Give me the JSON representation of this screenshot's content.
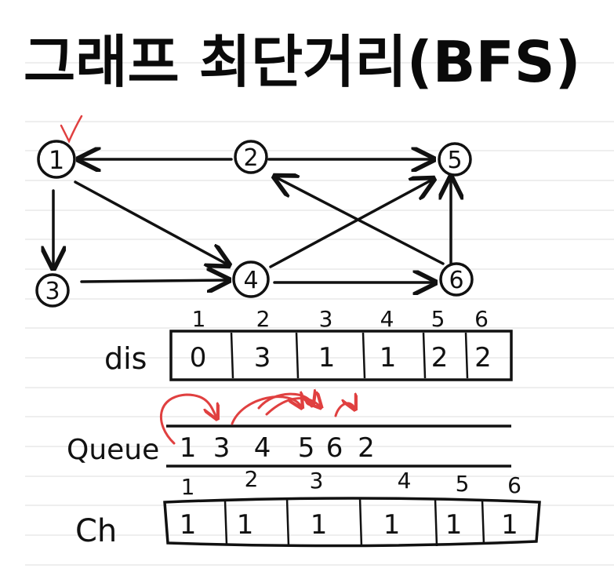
{
  "title": "그래프 최단거리(BFS)",
  "graph": {
    "nodes": [
      {
        "label": "1",
        "visited_mark": true
      },
      {
        "label": "2",
        "visited_mark": false
      },
      {
        "label": "3",
        "visited_mark": false
      },
      {
        "label": "4",
        "visited_mark": false
      },
      {
        "label": "5",
        "visited_mark": false
      },
      {
        "label": "6",
        "visited_mark": false
      }
    ],
    "edges": [
      {
        "from": "2",
        "to": "1"
      },
      {
        "from": "2",
        "to": "5"
      },
      {
        "from": "1",
        "to": "3"
      },
      {
        "from": "1",
        "to": "4"
      },
      {
        "from": "3",
        "to": "4"
      },
      {
        "from": "4",
        "to": "5"
      },
      {
        "from": "4",
        "to": "6"
      },
      {
        "from": "6",
        "to": "2"
      },
      {
        "from": "6",
        "to": "5"
      }
    ]
  },
  "dis": {
    "label": "dis",
    "indices": [
      "1",
      "2",
      "3",
      "4",
      "5",
      "6"
    ],
    "values": [
      "0",
      "3",
      "1",
      "1",
      "2",
      "2"
    ]
  },
  "queue": {
    "label": "Queue",
    "items": [
      "1",
      "3",
      "4",
      "5",
      "6",
      "2"
    ]
  },
  "ch": {
    "label": "Ch",
    "indices": [
      "1",
      "2",
      "3",
      "4",
      "5",
      "6"
    ],
    "values": [
      "1",
      "1",
      "1",
      "1",
      "1",
      "1"
    ]
  },
  "colors": {
    "ink": "#111111",
    "annotation": "#e04040",
    "rule_line": "#dcdcdc"
  }
}
